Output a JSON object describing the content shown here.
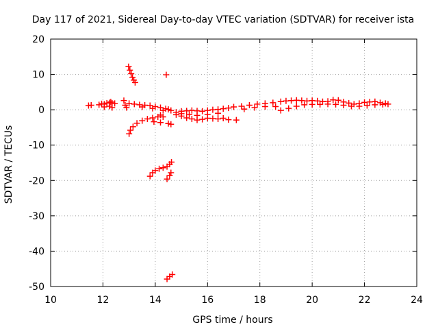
{
  "chart_data": {
    "type": "scatter",
    "title": "Day 117 of 2021, Sidereal Day-to-day VTEC variation (SDTVAR) for receiver ista",
    "xlabel": "GPS time / hours",
    "ylabel": "SDTVAR / TECUs",
    "xlim": [
      10,
      24
    ],
    "ylim": [
      -50,
      20
    ],
    "xticks": [
      10,
      12,
      14,
      16,
      18,
      20,
      22,
      24
    ],
    "yticks": [
      20,
      10,
      0,
      -10,
      -20,
      -30,
      -40,
      -50
    ],
    "grid": true,
    "marker": "plus",
    "color": "#ff0000",
    "series": [
      {
        "points": [
          [
            11.45,
            1.2
          ],
          [
            11.55,
            1.3
          ],
          [
            11.85,
            1.4
          ],
          [
            11.95,
            1.7
          ],
          [
            12.05,
            1.6
          ],
          [
            12.15,
            1.9
          ],
          [
            12.25,
            2.0
          ],
          [
            12.35,
            1.9
          ],
          [
            12.45,
            1.8
          ],
          [
            12.05,
            0.8
          ],
          [
            12.25,
            1.0
          ],
          [
            12.35,
            0.6
          ],
          [
            12.3,
            2.2
          ],
          [
            12.8,
            2.6
          ],
          [
            12.85,
            1.3
          ],
          [
            12.9,
            0.6
          ],
          [
            13.0,
            1.8
          ],
          [
            13.2,
            1.6
          ],
          [
            13.4,
            1.4
          ],
          [
            13.6,
            1.3
          ],
          [
            13.8,
            1.2
          ],
          [
            14.0,
            0.9
          ],
          [
            14.2,
            0.6
          ],
          [
            14.4,
            0.3
          ],
          [
            14.5,
            0.1
          ],
          [
            14.6,
            -0.2
          ],
          [
            13.5,
            0.8
          ],
          [
            13.9,
            0.4
          ],
          [
            14.3,
            -0.2
          ],
          [
            12.98,
            12.2
          ],
          [
            13.03,
            11.2
          ],
          [
            13.08,
            10.2
          ],
          [
            13.13,
            9.2
          ],
          [
            13.18,
            8.4
          ],
          [
            13.23,
            7.7
          ],
          [
            14.42,
            9.9
          ],
          [
            13.0,
            -6.8
          ],
          [
            13.05,
            -5.8
          ],
          [
            13.15,
            -4.8
          ],
          [
            13.3,
            -3.8
          ],
          [
            13.5,
            -3.1
          ],
          [
            13.7,
            -2.6
          ],
          [
            13.9,
            -2.3
          ],
          [
            14.1,
            -2.0
          ],
          [
            14.3,
            -2.0
          ],
          [
            13.95,
            -3.4
          ],
          [
            14.2,
            -3.6
          ],
          [
            14.5,
            -3.9
          ],
          [
            14.6,
            -4.1
          ],
          [
            14.2,
            -1.5
          ],
          [
            13.8,
            -18.8
          ],
          [
            13.9,
            -17.8
          ],
          [
            14.0,
            -17.2
          ],
          [
            14.15,
            -16.7
          ],
          [
            14.3,
            -16.4
          ],
          [
            14.45,
            -16.1
          ],
          [
            14.55,
            -15.4
          ],
          [
            14.62,
            -14.8
          ],
          [
            14.45,
            -19.6
          ],
          [
            14.55,
            -18.6
          ],
          [
            14.6,
            -17.8
          ],
          [
            14.45,
            -47.9
          ],
          [
            14.55,
            -47.2
          ],
          [
            14.65,
            -46.6
          ],
          [
            14.8,
            -1.4
          ],
          [
            15.0,
            -1.8
          ],
          [
            15.2,
            -2.3
          ],
          [
            15.4,
            -2.6
          ],
          [
            15.6,
            -2.9
          ],
          [
            15.8,
            -2.7
          ],
          [
            16.0,
            -2.4
          ],
          [
            16.2,
            -2.5
          ],
          [
            16.4,
            -2.6
          ],
          [
            16.6,
            -2.4
          ],
          [
            16.8,
            -2.8
          ],
          [
            17.1,
            -2.9
          ],
          [
            14.8,
            -0.7
          ],
          [
            15.0,
            -0.4
          ],
          [
            15.2,
            -0.3
          ],
          [
            15.4,
            -0.2
          ],
          [
            15.6,
            -0.3
          ],
          [
            15.8,
            -0.4
          ],
          [
            16.0,
            -0.2
          ],
          [
            16.2,
            0.0
          ],
          [
            16.4,
            0.1
          ],
          [
            16.6,
            0.3
          ],
          [
            16.8,
            0.5
          ],
          [
            15.0,
            -1.1
          ],
          [
            15.3,
            -1.3
          ],
          [
            15.6,
            -1.6
          ],
          [
            16.0,
            -1.3
          ],
          [
            16.4,
            -1.0
          ],
          [
            17.0,
            0.8
          ],
          [
            17.3,
            1.0
          ],
          [
            17.6,
            1.3
          ],
          [
            17.9,
            1.6
          ],
          [
            18.2,
            1.8
          ],
          [
            18.5,
            2.0
          ],
          [
            18.8,
            2.3
          ],
          [
            19.0,
            2.5
          ],
          [
            19.2,
            2.6
          ],
          [
            19.4,
            2.7
          ],
          [
            19.6,
            2.6
          ],
          [
            19.8,
            2.5
          ],
          [
            20.0,
            2.6
          ],
          [
            20.2,
            2.5
          ],
          [
            20.4,
            2.3
          ],
          [
            20.6,
            2.4
          ],
          [
            20.8,
            2.8
          ],
          [
            21.0,
            2.7
          ],
          [
            21.2,
            2.2
          ],
          [
            21.4,
            1.9
          ],
          [
            21.6,
            1.6
          ],
          [
            21.8,
            1.8
          ],
          [
            22.0,
            2.1
          ],
          [
            22.2,
            2.2
          ],
          [
            22.4,
            2.3
          ],
          [
            22.6,
            2.0
          ],
          [
            22.8,
            1.8
          ],
          [
            22.9,
            1.6
          ],
          [
            17.4,
            0.2
          ],
          [
            17.8,
            0.6
          ],
          [
            18.2,
            0.9
          ],
          [
            18.6,
            0.9
          ],
          [
            18.8,
            -0.2
          ],
          [
            19.1,
            0.4
          ],
          [
            19.4,
            1.0
          ],
          [
            19.7,
            1.4
          ],
          [
            20.0,
            1.5
          ],
          [
            20.3,
            1.5
          ],
          [
            20.6,
            1.6
          ],
          [
            20.9,
            1.5
          ],
          [
            21.2,
            1.3
          ],
          [
            21.5,
            1.0
          ],
          [
            21.8,
            1.0
          ],
          [
            22.1,
            1.2
          ],
          [
            22.4,
            1.4
          ],
          [
            22.7,
            1.5
          ]
        ]
      }
    ]
  }
}
